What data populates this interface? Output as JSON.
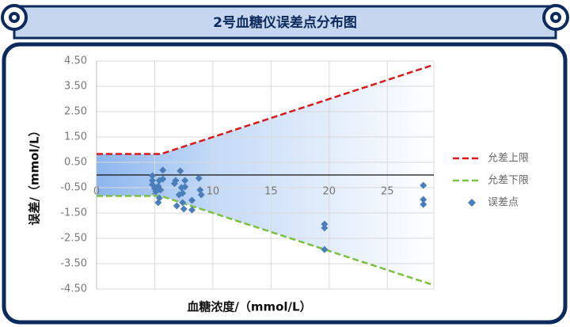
{
  "chart_data": {
    "type": "line",
    "title": "2号血糖仪误差点分布图",
    "x_label": "血糖浓度/（mmol/L）",
    "y_label": "误差/（mmol/L）",
    "xlim": [
      0,
      29
    ],
    "xticks": [
      0,
      5,
      10,
      15,
      20,
      25
    ],
    "ylim": [
      -4.5,
      4.5
    ],
    "yticks": [
      {
        "value": 4.5,
        "label": "4.50"
      },
      {
        "value": 3.5,
        "label": "3.50"
      },
      {
        "value": 2.5,
        "label": "2.50"
      },
      {
        "value": 1.5,
        "label": "1.50"
      },
      {
        "value": 0.5,
        "label": "0.50"
      },
      {
        "value": -0.5,
        "label": "-0.50"
      },
      {
        "value": -1.5,
        "label": "-1.50"
      },
      {
        "value": -2.5,
        "label": "-2.50"
      },
      {
        "value": -3.5,
        "label": "-3.50"
      },
      {
        "value": -4.5,
        "label": "-4.50"
      }
    ],
    "grid": true,
    "fill_between_limits": true,
    "legend": "right",
    "series": [
      {
        "name": "允差上限",
        "type": "line",
        "color": "#d7191c",
        "x": [
          0,
          5.55,
          29
        ],
        "values": [
          0.83,
          0.83,
          4.35
        ]
      },
      {
        "name": "允差下限",
        "type": "line",
        "color": "#7ac143",
        "x": [
          0,
          5.55,
          29
        ],
        "values": [
          -0.83,
          -0.83,
          -4.35
        ]
      },
      {
        "name": "误差点",
        "type": "scatter",
        "color": "#4a7ebb",
        "x": [
          4.8,
          4.8,
          4.8,
          5.0,
          5.1,
          5.3,
          5.4,
          5.7,
          5.4,
          5.3,
          5.5,
          5.7,
          6.7,
          6.8,
          6.9,
          7.1,
          7.2,
          7.3,
          7.4,
          7.5,
          7.4,
          7.6,
          7.6,
          8.2,
          8.2,
          8.8,
          8.9,
          9.0,
          19.6,
          19.6,
          19.6,
          28.1,
          28.1,
          28.1
        ],
        "values": [
          -0.03,
          -0.22,
          -0.38,
          -0.53,
          -0.66,
          -0.44,
          -0.22,
          0.19,
          -0.91,
          -1.09,
          -0.59,
          -0.16,
          -0.34,
          -0.22,
          -1.22,
          -0.78,
          0.16,
          -0.5,
          -1.09,
          -1.34,
          -0.72,
          -0.47,
          -0.22,
          -1.0,
          -1.38,
          -0.13,
          -0.59,
          -0.78,
          -1.94,
          -2.09,
          -2.94,
          -0.41,
          -0.97,
          -1.16
        ]
      }
    ]
  }
}
